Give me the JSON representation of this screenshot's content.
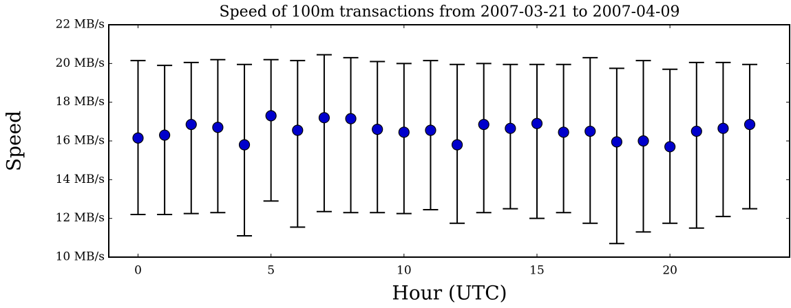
{
  "chart_data": {
    "type": "errorbar",
    "title": "Speed of 100m transactions from 2007-03-21 to 2007-04-09",
    "xlabel": "Hour (UTC)",
    "ylabel": "Speed",
    "x": [
      0,
      1,
      2,
      3,
      4,
      5,
      6,
      7,
      8,
      9,
      10,
      11,
      12,
      13,
      14,
      15,
      16,
      17,
      18,
      19,
      20,
      21,
      22,
      23
    ],
    "values": [
      16.15,
      16.3,
      16.85,
      16.7,
      15.8,
      17.3,
      16.55,
      17.2,
      17.15,
      16.6,
      16.45,
      16.55,
      15.8,
      16.85,
      16.65,
      16.9,
      16.45,
      16.5,
      15.95,
      16.0,
      15.7,
      16.5,
      16.65,
      16.85
    ],
    "lower": [
      12.2,
      12.2,
      12.25,
      12.3,
      11.1,
      12.9,
      11.55,
      12.35,
      12.3,
      12.3,
      12.25,
      12.45,
      11.75,
      12.3,
      12.5,
      12.0,
      12.3,
      11.75,
      10.7,
      11.3,
      11.75,
      11.5,
      12.1,
      12.5
    ],
    "upper": [
      20.15,
      19.9,
      20.05,
      20.2,
      19.95,
      20.2,
      20.15,
      20.45,
      20.3,
      20.1,
      20.0,
      20.15,
      19.95,
      20.0,
      19.95,
      19.95,
      19.95,
      20.3,
      19.75,
      20.15,
      19.7,
      20.05,
      20.05,
      19.95
    ],
    "color": "#0000cc",
    "xlim": [
      -1.1,
      24.5
    ],
    "ylim": [
      10,
      22
    ],
    "xticks": [
      0,
      5,
      10,
      15,
      20
    ],
    "yticks": [
      {
        "value": 10,
        "label": "10 MB/s"
      },
      {
        "value": 12,
        "label": "12 MB/s"
      },
      {
        "value": 14,
        "label": "14 MB/s"
      },
      {
        "value": 16,
        "label": "16 MB/s"
      },
      {
        "value": 18,
        "label": "18 MB/s"
      },
      {
        "value": 20,
        "label": "20 MB/s"
      },
      {
        "value": 22,
        "label": "22 MB/s"
      }
    ]
  }
}
